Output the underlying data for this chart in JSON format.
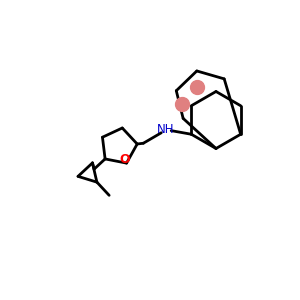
{
  "bg_color": "#ffffff",
  "bond_color": "#000000",
  "N_color": "#0000cc",
  "O_color": "#ff0000",
  "aromatic_dot_color": "#e08080",
  "bond_width": 2.0,
  "figsize": [
    3.0,
    3.0
  ],
  "dpi": 100,
  "dot1": [
    6.05,
    6.55
  ],
  "dot2": [
    6.55,
    7.1
  ],
  "dot_size": 10
}
